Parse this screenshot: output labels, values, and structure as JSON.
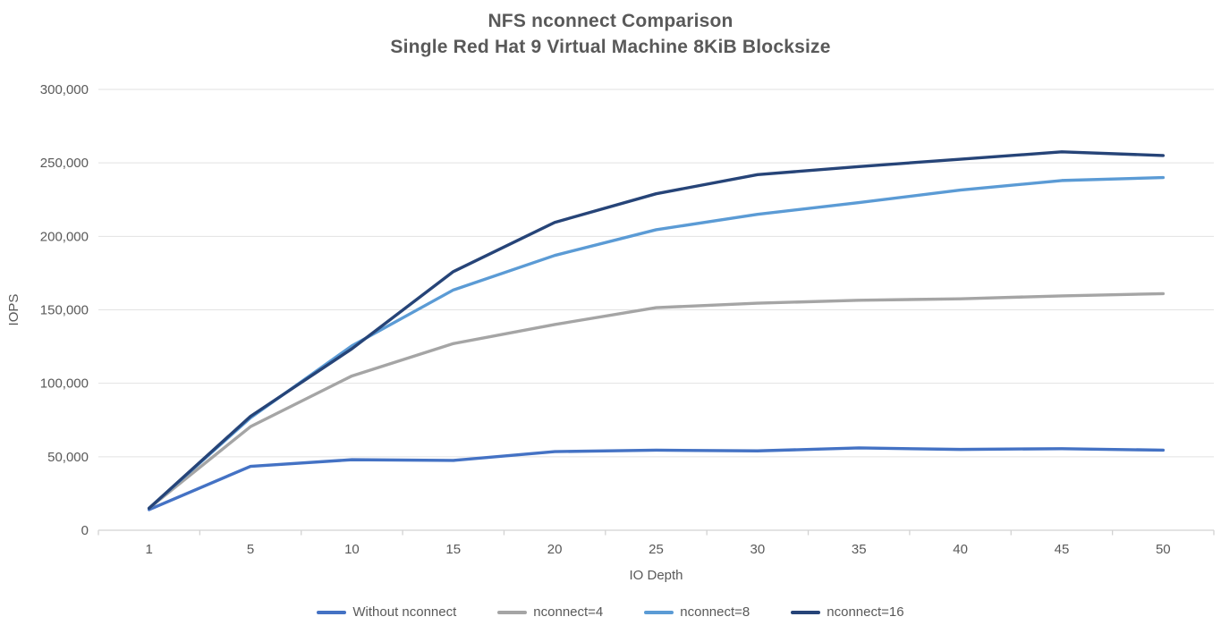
{
  "chart_data": {
    "type": "line",
    "title": "NFS nconnect Comparison",
    "subtitle": "Single Red Hat 9 Virtual Machine 8KiB Blocksize",
    "xlabel": "IO Depth",
    "ylabel": "IOPS",
    "categories": [
      "1",
      "5",
      "10",
      "15",
      "20",
      "25",
      "30",
      "35",
      "40",
      "45",
      "50"
    ],
    "ylim": [
      0,
      300000
    ],
    "y_tick_step": 50000,
    "y_tick_labels": [
      "0",
      "50,000",
      "100,000",
      "150,000",
      "200,000",
      "250,000",
      "300,000"
    ],
    "grid": "horizontal",
    "legend_position": "bottom",
    "series": [
      {
        "name": "Without nconnect",
        "color": "#4472C4",
        "values": [
          14000,
          43500,
          48000,
          47500,
          53500,
          54500,
          54000,
          56000,
          55000,
          55500,
          54500
        ]
      },
      {
        "name": "nconnect=4",
        "color": "#A5A5A5",
        "values": [
          15000,
          70500,
          105000,
          127000,
          140000,
          151500,
          154500,
          156500,
          157500,
          159500,
          161000
        ]
      },
      {
        "name": "nconnect=8",
        "color": "#5B9BD5",
        "values": [
          15000,
          76500,
          125500,
          163500,
          187000,
          204500,
          215000,
          223000,
          231500,
          238000,
          240000
        ]
      },
      {
        "name": "nconnect=16",
        "color": "#264478",
        "values": [
          15000,
          77500,
          123500,
          176000,
          209500,
          229000,
          242000,
          247500,
          252500,
          257500,
          255000
        ]
      }
    ],
    "colors": {
      "axis_text": "#595959",
      "gridline": "#E2E2E2",
      "axis_line": "#D2D2D2"
    }
  }
}
